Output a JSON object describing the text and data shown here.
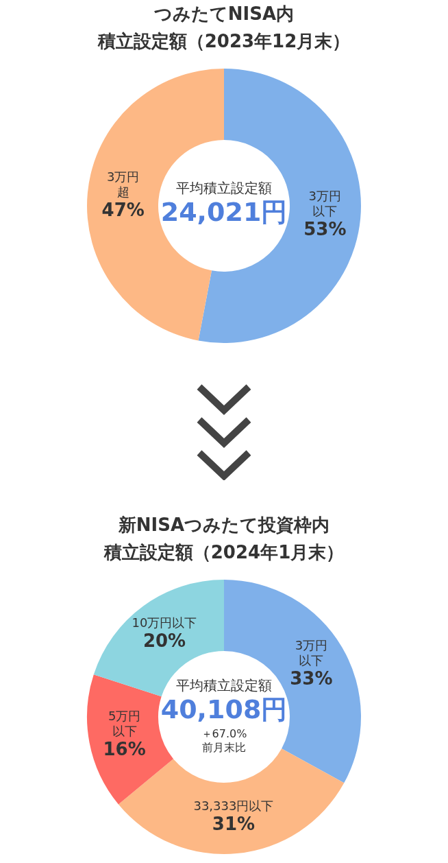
{
  "chart_data": [
    {
      "type": "donut",
      "title": "つみたてNISA内",
      "subtitle": "積立設定額（2023年12月末）",
      "categories": [
        "3万円以下",
        "3万円超"
      ],
      "values": [
        53,
        47
      ],
      "value_labels": [
        "53%",
        "47%"
      ],
      "colors": [
        "#7fb0ea",
        "#fdb885"
      ],
      "annotations": [
        "平均積立設定額",
        "24,021円"
      ]
    },
    {
      "type": "donut",
      "title": "新NISAつみたて投資枠内",
      "subtitle": "積立設定額（2024年1月末）",
      "categories": [
        "3万円以下",
        "33,333円以下",
        "5万円以下",
        "10万円以下"
      ],
      "values": [
        33,
        31,
        16,
        20
      ],
      "value_labels": [
        "33%",
        "31%",
        "16%",
        "20%"
      ],
      "colors": [
        "#7fb0ea",
        "#fdb885",
        "#fe6a63",
        "#8dd5e0"
      ],
      "annotations": [
        "平均積立設定額",
        "40,108円",
        "＋67.0%",
        "前月末比"
      ]
    }
  ]
}
